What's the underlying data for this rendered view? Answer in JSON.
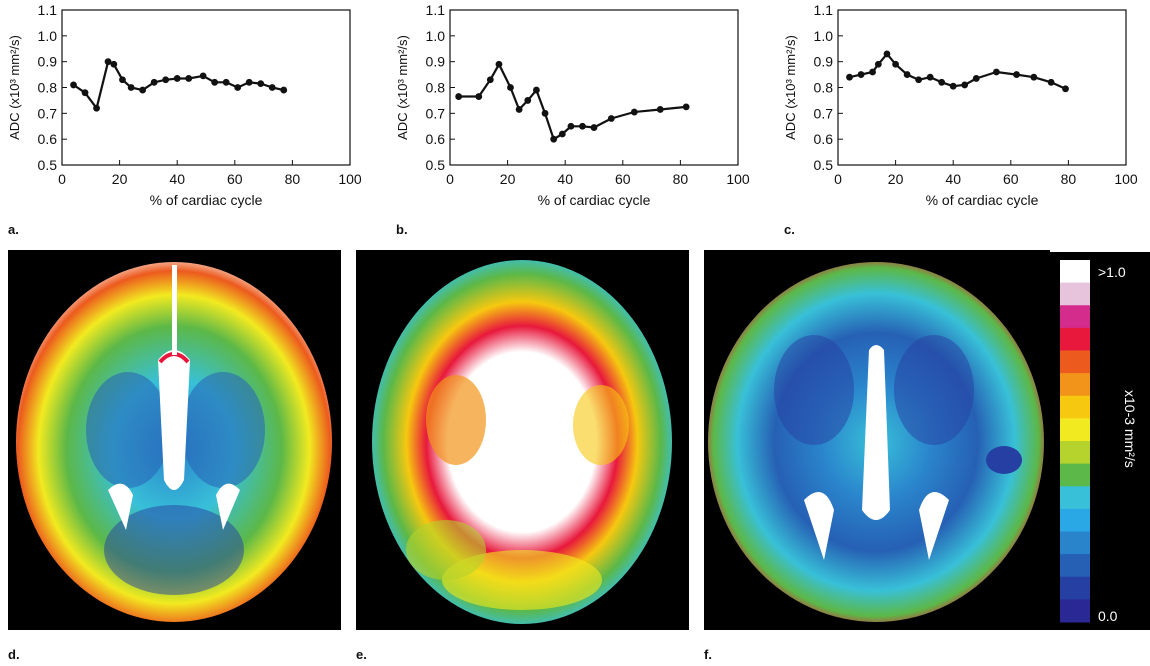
{
  "chart_data": [
    {
      "type": "line",
      "xlabel": "% of cardiac cycle",
      "ylabel": "ADC (x10³ mm²/s)",
      "xlim": [
        0,
        100
      ],
      "ylim": [
        0.5,
        1.1
      ],
      "xticks": [
        "0",
        "20",
        "40",
        "60",
        "80",
        "100"
      ],
      "yticks": [
        "0.5",
        "0.6",
        "0.7",
        "0.8",
        "0.9",
        "1.0",
        "1.1"
      ],
      "grid": false,
      "x": [
        4,
        8,
        12,
        16,
        18,
        21,
        24,
        28,
        32,
        36,
        40,
        44,
        49,
        53,
        57,
        61,
        65,
        69,
        73,
        77
      ],
      "y": [
        0.81,
        0.78,
        0.72,
        0.9,
        0.89,
        0.83,
        0.8,
        0.79,
        0.82,
        0.83,
        0.835,
        0.835,
        0.845,
        0.82,
        0.82,
        0.8,
        0.82,
        0.815,
        0.8,
        0.79
      ]
    },
    {
      "type": "line",
      "xlabel": "% of cardiac cycle",
      "ylabel": "ADC (x10³ mm²/s)",
      "xlim": [
        0,
        100
      ],
      "ylim": [
        0.5,
        1.1
      ],
      "xticks": [
        "0",
        "20",
        "40",
        "60",
        "80",
        "100"
      ],
      "yticks": [
        "0.5",
        "0.6",
        "0.7",
        "0.8",
        "0.9",
        "1.0",
        "1.1"
      ],
      "grid": false,
      "x": [
        3,
        10,
        14,
        17,
        21,
        24,
        27,
        30,
        33,
        36,
        39,
        42,
        46,
        50,
        56,
        64,
        73,
        82
      ],
      "y": [
        0.765,
        0.765,
        0.83,
        0.89,
        0.8,
        0.715,
        0.75,
        0.79,
        0.7,
        0.6,
        0.62,
        0.65,
        0.65,
        0.645,
        0.68,
        0.705,
        0.715,
        0.725
      ]
    },
    {
      "type": "line",
      "xlabel": "% of cardiac cycle",
      "ylabel": "ADC (x10³ mm²/s)",
      "xlim": [
        0,
        100
      ],
      "ylim": [
        0.5,
        1.1
      ],
      "xticks": [
        "0",
        "20",
        "40",
        "60",
        "80",
        "100"
      ],
      "yticks": [
        "0.5",
        "0.6",
        "0.7",
        "0.8",
        "0.9",
        "1.0",
        "1.1"
      ],
      "grid": false,
      "x": [
        4,
        8,
        12,
        14,
        17,
        20,
        24,
        28,
        32,
        36,
        40,
        44,
        48,
        55,
        62,
        68,
        74,
        79
      ],
      "y": [
        0.84,
        0.85,
        0.86,
        0.89,
        0.93,
        0.89,
        0.85,
        0.83,
        0.84,
        0.82,
        0.805,
        0.81,
        0.835,
        0.86,
        0.85,
        0.84,
        0.82,
        0.795
      ]
    }
  ],
  "panel_labels": [
    "a.",
    "b.",
    "c.",
    "d.",
    "e.",
    "f."
  ],
  "colorbar": {
    "max_label": ">1.0",
    "min_label": "0.0",
    "unit_label": "x10-3 mm²/s",
    "colors": [
      "#ffffff",
      "#e8c4dc",
      "#d42c8c",
      "#e8183c",
      "#ec5a1e",
      "#f2941a",
      "#f6c810",
      "#f2ea20",
      "#b6d22c",
      "#5cb848",
      "#38c0d8",
      "#2aa8e6",
      "#2a84cc",
      "#2660b4",
      "#2540a2",
      "#2a2894"
    ]
  }
}
